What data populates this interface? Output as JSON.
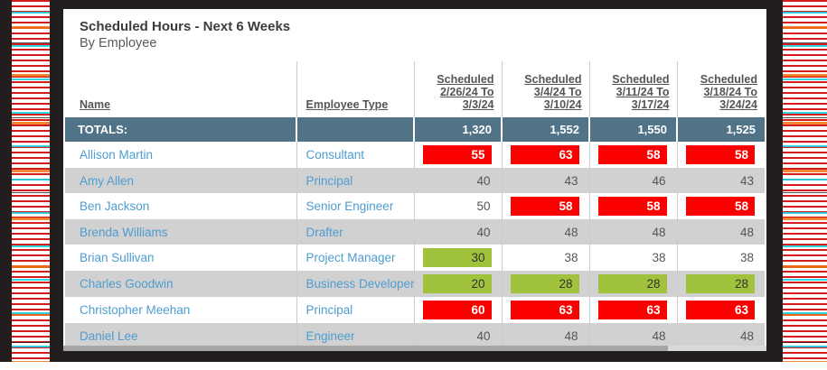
{
  "page": {
    "title": "Scheduled Hours - Next 6 Weeks",
    "subtitle": "By Employee"
  },
  "table": {
    "columns": [
      {
        "id": "name",
        "label": "Name"
      },
      {
        "id": "employee_type",
        "label": "Employee Type"
      },
      {
        "id": "week1",
        "label": "Scheduled\n2/26/24 To\n3/3/24"
      },
      {
        "id": "week2",
        "label": "Scheduled\n3/4/24 To\n3/10/24"
      },
      {
        "id": "week3",
        "label": "Scheduled\n3/11/24 To\n3/17/24"
      },
      {
        "id": "week4",
        "label": "Scheduled\n3/18/24 To\n3/24/24"
      }
    ],
    "totals": {
      "label": "TOTALS:",
      "values": [
        "1,320",
        "1,552",
        "1,550",
        "1,525"
      ]
    },
    "rows": [
      {
        "name": "Allison Martin",
        "employee_type": "Consultant",
        "values": [
          {
            "v": "55",
            "status": "over"
          },
          {
            "v": "63",
            "status": "over"
          },
          {
            "v": "58",
            "status": "over"
          },
          {
            "v": "58",
            "status": "over"
          }
        ]
      },
      {
        "name": "Amy Allen",
        "employee_type": "Principal",
        "values": [
          {
            "v": "40",
            "status": "normal"
          },
          {
            "v": "43",
            "status": "normal"
          },
          {
            "v": "46",
            "status": "normal"
          },
          {
            "v": "43",
            "status": "normal"
          }
        ]
      },
      {
        "name": "Ben Jackson",
        "employee_type": "Senior Engineer",
        "values": [
          {
            "v": "50",
            "status": "normal"
          },
          {
            "v": "58",
            "status": "over"
          },
          {
            "v": "58",
            "status": "over"
          },
          {
            "v": "58",
            "status": "over"
          }
        ]
      },
      {
        "name": "Brenda Williams",
        "employee_type": "Drafter",
        "values": [
          {
            "v": "40",
            "status": "normal"
          },
          {
            "v": "48",
            "status": "normal"
          },
          {
            "v": "48",
            "status": "normal"
          },
          {
            "v": "48",
            "status": "normal"
          }
        ]
      },
      {
        "name": "Brian Sullivan",
        "employee_type": "Project Manager",
        "values": [
          {
            "v": "30",
            "status": "under"
          },
          {
            "v": "38",
            "status": "normal"
          },
          {
            "v": "38",
            "status": "normal"
          },
          {
            "v": "38",
            "status": "normal"
          }
        ]
      },
      {
        "name": "Charles Goodwin",
        "employee_type": "Business Developer",
        "values": [
          {
            "v": "20",
            "status": "under"
          },
          {
            "v": "28",
            "status": "under"
          },
          {
            "v": "28",
            "status": "under"
          },
          {
            "v": "28",
            "status": "under"
          }
        ]
      },
      {
        "name": "Christopher Meehan",
        "employee_type": "Principal",
        "values": [
          {
            "v": "60",
            "status": "over"
          },
          {
            "v": "63",
            "status": "over"
          },
          {
            "v": "63",
            "status": "over"
          },
          {
            "v": "63",
            "status": "over"
          }
        ]
      },
      {
        "name": "Daniel Lee",
        "employee_type": "Engineer",
        "values": [
          {
            "v": "40",
            "status": "normal"
          },
          {
            "v": "48",
            "status": "normal"
          },
          {
            "v": "48",
            "status": "normal"
          },
          {
            "v": "48",
            "status": "normal"
          }
        ]
      }
    ]
  },
  "colors": {
    "over_bg": "#fb0000",
    "over_text": "#ffffff",
    "under_bg": "#a0c23c",
    "under_text": "#333333",
    "totals_bg": "#507387",
    "totals_text": "#ffffff",
    "link_text": "#4d9dd0",
    "row_alt_bg": "#d1d1d1",
    "frame_bg": "#221e1f"
  }
}
